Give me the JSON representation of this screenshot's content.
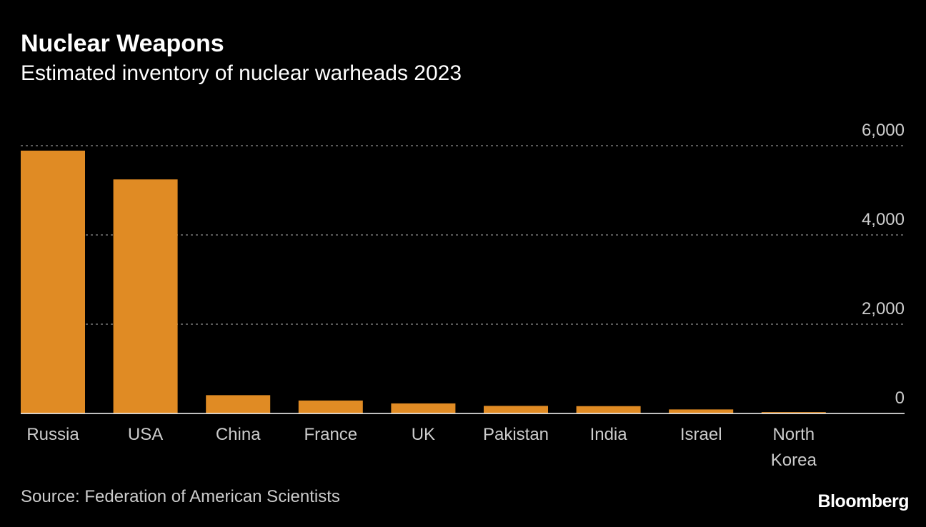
{
  "colors": {
    "background": "#000000",
    "bar": "#E08B24",
    "grid": "#777777",
    "axis_text": "#cccccc"
  },
  "title": "Nuclear Weapons",
  "subtitle": "Estimated inventory of nuclear warheads 2023",
  "source": "Source: Federation of American Scientists",
  "brand": "Bloomberg",
  "chart_data": {
    "type": "bar",
    "title": "Nuclear Weapons",
    "subtitle": "Estimated inventory of nuclear warheads 2023",
    "categories": [
      "Russia",
      "USA",
      "China",
      "France",
      "UK",
      "Pakistan",
      "India",
      "Israel",
      "North Korea"
    ],
    "category_labels": [
      [
        "Russia"
      ],
      [
        "USA"
      ],
      [
        "China"
      ],
      [
        "France"
      ],
      [
        "UK"
      ],
      [
        "Pakistan"
      ],
      [
        "India"
      ],
      [
        "Israel"
      ],
      [
        "North",
        "Korea"
      ]
    ],
    "values": [
      5889,
      5244,
      410,
      290,
      225,
      170,
      164,
      90,
      30
    ],
    "ylim": [
      0,
      6000
    ],
    "yticks": [
      0,
      2000,
      4000,
      6000
    ],
    "ytick_labels": [
      "0",
      "2,000",
      "4,000",
      "6,000"
    ],
    "y_axis_position": "right",
    "grid": true,
    "legend": "none"
  }
}
